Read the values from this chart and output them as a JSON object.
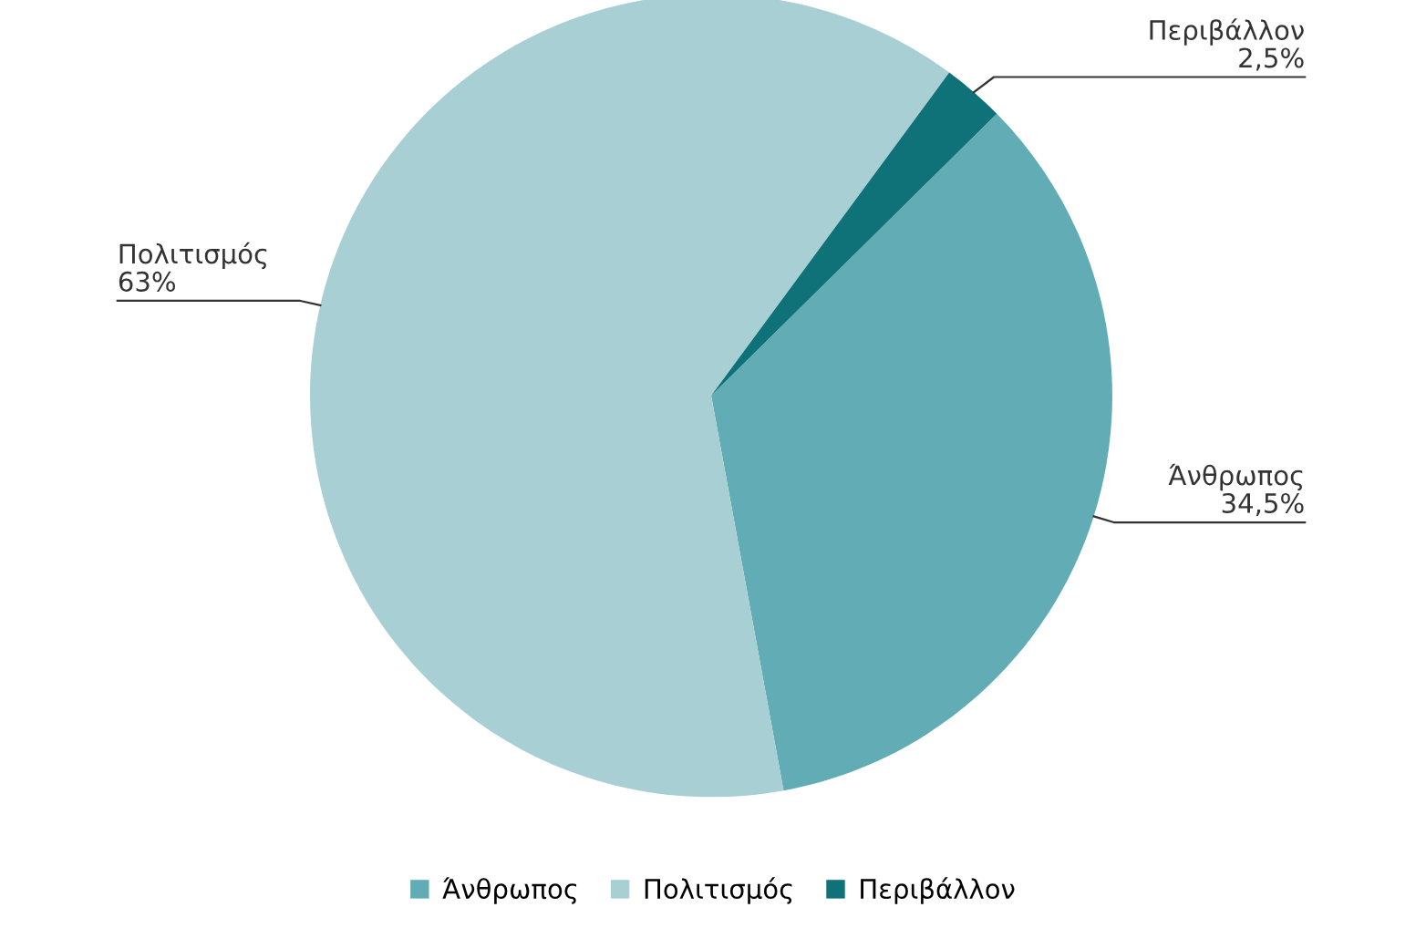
{
  "chart_data": {
    "type": "pie",
    "categories": [
      "Άνθρωπος",
      "Πολιτισμός",
      "Περιβάλλον"
    ],
    "values": [
      34.5,
      63,
      2.5
    ],
    "value_labels": [
      "34,5%",
      "63%",
      "2,5%"
    ],
    "colors": [
      "#62adb5",
      "#a8d0d4",
      "#0e7278"
    ],
    "legend": "bottom"
  }
}
